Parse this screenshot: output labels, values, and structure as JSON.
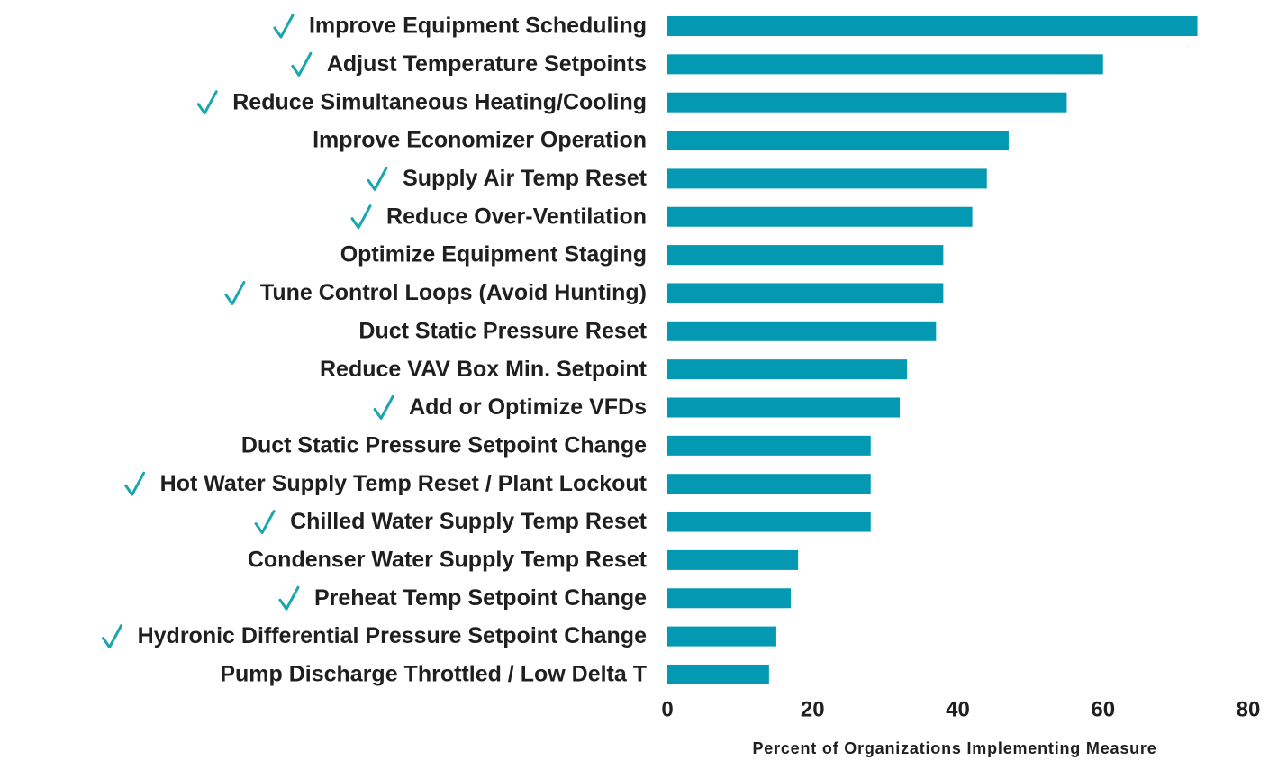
{
  "chart_data": {
    "type": "barh",
    "x_label": "Percent of Organizations Implementing Measure",
    "categories": [
      "Improve Equipment Scheduling",
      "Adjust Temperature Setpoints",
      "Reduce Simultaneous Heating/Cooling",
      "Improve Economizer Operation",
      "Supply Air Temp Reset",
      "Reduce Over-Ventilation",
      "Optimize Equipment Staging",
      "Tune Control Loops (Avoid Hunting)",
      "Duct Static Pressure Reset",
      "Reduce VAV Box Min. Setpoint",
      "Add or Optimize VFDs",
      "Duct Static Pressure Setpoint Change",
      "Hot Water Supply Temp Reset / Plant Lockout",
      "Chilled Water Supply Temp Reset",
      "Condenser Water Supply Temp Reset",
      "Preheat Temp Setpoint Change",
      "Hydronic Differential Pressure Setpoint Change",
      "Pump Discharge Throttled / Low Delta T"
    ],
    "values": [
      73,
      60,
      55,
      47,
      44,
      42,
      38,
      38,
      37,
      33,
      32,
      28,
      28,
      28,
      18,
      17,
      15,
      14
    ],
    "checked": [
      true,
      true,
      true,
      false,
      true,
      true,
      false,
      true,
      false,
      false,
      true,
      false,
      true,
      true,
      false,
      true,
      true,
      false
    ],
    "color": "#0399b2",
    "check_color": "#1aa6ae",
    "xlim": [
      0,
      80
    ],
    "xticks": [
      0,
      20,
      40,
      60,
      80
    ]
  }
}
